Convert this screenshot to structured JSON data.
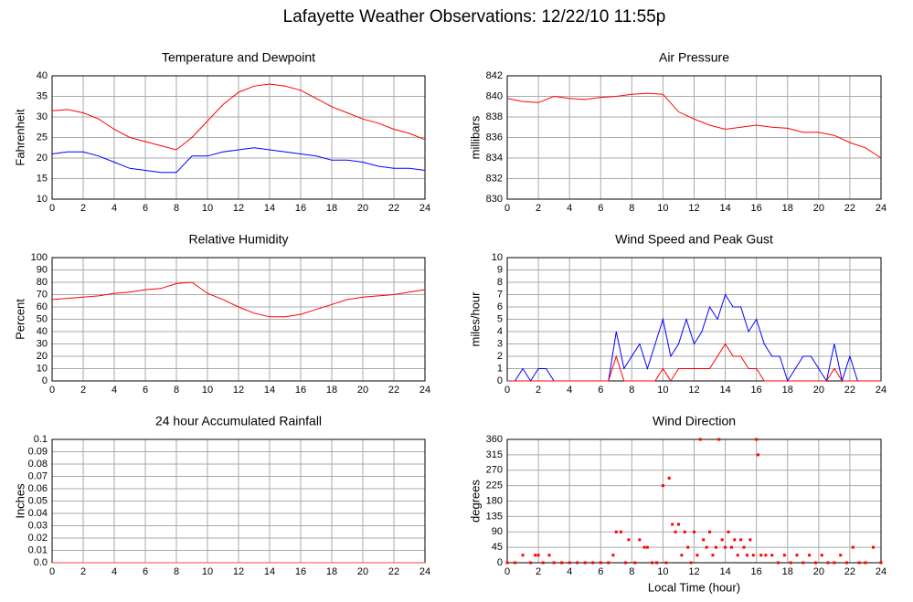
{
  "title": "Lafayette Weather Observations: 12/22/10 11:55p",
  "chart_data": [
    {
      "type": "line",
      "title": "Temperature and Dewpoint",
      "ylabel": "Fahrenheit",
      "x": [
        0,
        1,
        2,
        3,
        4,
        5,
        6,
        7,
        8,
        9,
        10,
        11,
        12,
        13,
        14,
        15,
        16,
        17,
        18,
        19,
        20,
        21,
        22,
        23,
        24
      ],
      "series": [
        {
          "color": "#ff0000",
          "values": [
            31.5,
            31.8,
            31,
            29.5,
            27,
            25,
            24,
            23,
            22,
            25,
            29,
            33,
            36,
            37.5,
            38,
            37.5,
            36.5,
            34.5,
            32.5,
            31,
            29.5,
            28.5,
            27,
            26,
            24.5
          ]
        },
        {
          "color": "#0000ff",
          "values": [
            21,
            21.5,
            21.5,
            20.5,
            19,
            17.5,
            17,
            16.5,
            16.5,
            20.5,
            20.5,
            21.5,
            22,
            22.5,
            22,
            21.5,
            21,
            20.5,
            19.5,
            19.5,
            19,
            18,
            17.5,
            17.5,
            17
          ]
        }
      ],
      "xlim": [
        0,
        24
      ],
      "xticks": [
        0,
        2,
        4,
        6,
        8,
        10,
        12,
        14,
        16,
        18,
        20,
        22,
        24
      ],
      "ylim": [
        10,
        40
      ],
      "yticks": [
        10,
        15,
        20,
        25,
        30,
        35,
        40
      ],
      "grid": true
    },
    {
      "type": "line",
      "title": "Air Pressure",
      "ylabel": "millibars",
      "x": [
        0,
        1,
        2,
        3,
        4,
        5,
        6,
        7,
        8,
        9,
        10,
        11,
        12,
        13,
        14,
        15,
        16,
        17,
        18,
        19,
        20,
        21,
        22,
        23,
        24
      ],
      "series": [
        {
          "color": "#ff0000",
          "values": [
            839.8,
            839.5,
            839.4,
            840,
            839.8,
            839.7,
            839.9,
            840,
            840.2,
            840.3,
            840.2,
            838.5,
            837.8,
            837.2,
            836.8,
            837,
            837.2,
            837,
            836.9,
            836.5,
            836.5,
            836.2,
            835.5,
            835,
            834
          ]
        }
      ],
      "xlim": [
        0,
        24
      ],
      "xticks": [
        0,
        2,
        4,
        6,
        8,
        10,
        12,
        14,
        16,
        18,
        20,
        22,
        24
      ],
      "ylim": [
        830,
        842
      ],
      "yticks": [
        830,
        832,
        834,
        836,
        838,
        840,
        842
      ],
      "grid": true
    },
    {
      "type": "line",
      "title": "Relative Humidity",
      "ylabel": "Percent",
      "x": [
        0,
        1,
        2,
        3,
        4,
        5,
        6,
        7,
        8,
        9,
        10,
        11,
        12,
        13,
        14,
        15,
        16,
        17,
        18,
        19,
        20,
        21,
        22,
        23,
        24
      ],
      "series": [
        {
          "color": "#ff0000",
          "values": [
            66,
            67,
            68,
            69,
            71,
            72,
            74,
            75,
            79,
            80,
            71,
            66,
            60,
            55,
            52,
            52,
            54,
            58,
            62,
            66,
            68,
            69,
            70,
            72,
            74
          ]
        }
      ],
      "xlim": [
        0,
        24
      ],
      "xticks": [
        0,
        2,
        4,
        6,
        8,
        10,
        12,
        14,
        16,
        18,
        20,
        22,
        24
      ],
      "ylim": [
        0,
        100
      ],
      "yticks": [
        0,
        10,
        20,
        30,
        40,
        50,
        60,
        70,
        80,
        90,
        100
      ],
      "grid": true
    },
    {
      "type": "line",
      "title": "Wind Speed and Peak Gust",
      "ylabel": "miles/hour",
      "x": [
        0,
        0.5,
        1,
        1.5,
        2,
        2.5,
        3,
        3.5,
        4,
        4.5,
        5,
        5.5,
        6,
        6.5,
        7,
        7.5,
        8,
        8.5,
        9,
        9.5,
        10,
        10.5,
        11,
        11.5,
        12,
        12.5,
        13,
        13.5,
        14,
        14.5,
        15,
        15.5,
        16,
        16.5,
        17,
        17.5,
        18,
        18.5,
        19,
        19.5,
        20,
        20.5,
        21,
        21.5,
        22,
        22.5,
        23,
        23.5,
        24
      ],
      "series": [
        {
          "color": "#0000ff",
          "values": [
            0,
            0,
            1,
            0,
            1,
            1,
            0,
            0,
            0,
            0,
            0,
            0,
            0,
            0,
            4,
            1,
            2,
            3,
            1,
            3,
            5,
            2,
            3,
            5,
            3,
            4,
            6,
            5,
            7,
            6,
            6,
            4,
            5,
            3,
            2,
            2,
            0,
            1,
            2,
            2,
            1,
            0,
            3,
            0,
            2,
            0,
            0,
            0,
            0
          ]
        },
        {
          "color": "#ff0000",
          "values": [
            0,
            0,
            0,
            0,
            0,
            0,
            0,
            0,
            0,
            0,
            0,
            0,
            0,
            0,
            2,
            0,
            0,
            0,
            0,
            0,
            1,
            0,
            1,
            1,
            1,
            1,
            1,
            2,
            3,
            2,
            2,
            1,
            1,
            0,
            0,
            0,
            0,
            0,
            0,
            0,
            0,
            0,
            1,
            0,
            0,
            0,
            0,
            0,
            0
          ]
        }
      ],
      "xlim": [
        0,
        24
      ],
      "xticks": [
        0,
        2,
        4,
        6,
        8,
        10,
        12,
        14,
        16,
        18,
        20,
        22,
        24
      ],
      "ylim": [
        0,
        10
      ],
      "yticks": [
        0,
        1,
        2,
        3,
        4,
        5,
        6,
        7,
        8,
        9,
        10
      ],
      "grid": true
    },
    {
      "type": "line",
      "title": "24 hour Accumulated Rainfall",
      "ylabel": "Inches",
      "x": [
        0,
        2,
        4,
        6,
        8,
        10,
        12,
        14,
        16,
        18,
        20,
        22,
        24
      ],
      "series": [
        {
          "color": "#ff4040",
          "values": [
            0,
            0,
            0,
            0,
            0,
            0,
            0,
            0,
            0,
            0,
            0,
            0,
            0
          ]
        }
      ],
      "xlim": [
        0,
        24
      ],
      "xticks": [
        0,
        2,
        4,
        6,
        8,
        10,
        12,
        14,
        16,
        18,
        20,
        22,
        24
      ],
      "ylim": [
        0,
        0.1
      ],
      "yticks": [
        {
          "value": 0,
          "label": "0.0"
        },
        0.01,
        0.02,
        0.03,
        0.04,
        0.05,
        0.06,
        0.07,
        0.08,
        0.09,
        0.1
      ],
      "grid": true
    },
    {
      "type": "scatter",
      "title": "Wind Direction",
      "ylabel": "degrees",
      "xlabel": "Local Time (hour)",
      "x": [
        0,
        0.5,
        1,
        1.5,
        1.8,
        2,
        2.3,
        2.7,
        3,
        3.5,
        4,
        4.5,
        5,
        5.5,
        6,
        6.5,
        6.8,
        7,
        7.3,
        7.6,
        7.8,
        8.2,
        8.5,
        8.8,
        9,
        9.3,
        9.6,
        10,
        10.2,
        10.4,
        10.6,
        10.8,
        11,
        11.2,
        11.4,
        11.6,
        11.8,
        12,
        12.2,
        12.4,
        12.6,
        12.8,
        13,
        13.2,
        13.4,
        13.6,
        13.8,
        14,
        14.2,
        14.4,
        14.6,
        14.8,
        15,
        15.2,
        15.4,
        15.6,
        15.8,
        16,
        16.1,
        16.3,
        16.6,
        17,
        17.4,
        17.8,
        18.2,
        18.6,
        19,
        19.4,
        19.8,
        20.2,
        20.6,
        21,
        21.4,
        21.8,
        22.2,
        22.6,
        23,
        23.5,
        24
      ],
      "series": [
        {
          "color": "#ff0000",
          "values": [
            0,
            0,
            22,
            0,
            22,
            22,
            0,
            22,
            0,
            0,
            0,
            0,
            0,
            0,
            0,
            0,
            22,
            90,
            90,
            0,
            67,
            0,
            67,
            45,
            45,
            0,
            0,
            225,
            0,
            247,
            112,
            90,
            112,
            22,
            90,
            45,
            0,
            90,
            22,
            360,
            67,
            45,
            90,
            22,
            45,
            360,
            67,
            45,
            90,
            45,
            67,
            22,
            67,
            45,
            22,
            67,
            22,
            360,
            315,
            22,
            22,
            22,
            0,
            22,
            0,
            22,
            0,
            22,
            0,
            22,
            0,
            0,
            22,
            0,
            45,
            0,
            0,
            45,
            0
          ]
        }
      ],
      "xlim": [
        0,
        24
      ],
      "xticks": [
        0,
        2,
        4,
        6,
        8,
        10,
        12,
        14,
        16,
        18,
        20,
        22,
        24
      ],
      "ylim": [
        0,
        360
      ],
      "yticks": [
        0,
        45,
        90,
        135,
        180,
        225,
        270,
        315,
        360
      ],
      "grid": true
    }
  ]
}
